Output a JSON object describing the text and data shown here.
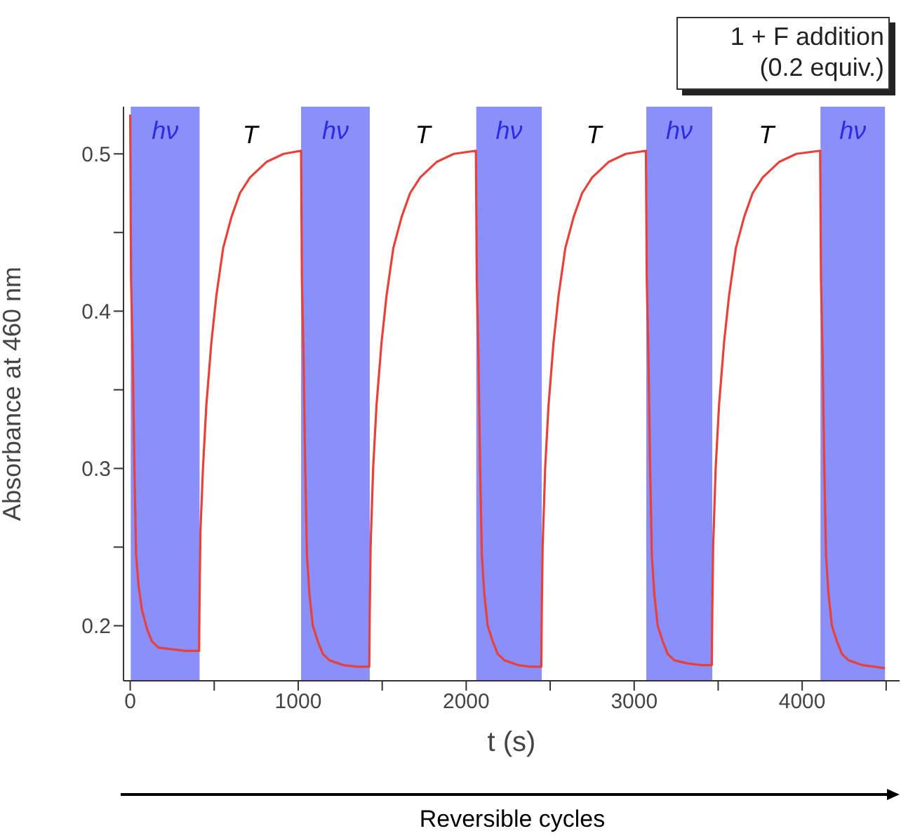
{
  "chart_data": {
    "type": "line",
    "xlabel": "t (s)",
    "ylabel": "Absorbance at 460 nm",
    "xlim": [
      -40,
      4580
    ],
    "ylim": [
      0.165,
      0.53
    ],
    "xticks": [
      0,
      {
        "value": 500,
        "label": null
      },
      1000,
      {
        "value": 1500,
        "label": null
      },
      2000,
      {
        "value": 2500,
        "label": null
      },
      3000,
      {
        "value": 3500,
        "label": null
      },
      4000,
      {
        "value": 4500,
        "label": null
      }
    ],
    "yticks": [
      0.2,
      {
        "value": 0.25,
        "label": null
      },
      0.3,
      {
        "value": 0.35,
        "label": null
      },
      0.4,
      {
        "value": 0.45,
        "label": null
      },
      0.5
    ],
    "grid": false,
    "legend": false,
    "series": [
      {
        "color": "#e8413a",
        "x": [
          0,
          5,
          15,
          25,
          35,
          50,
          70,
          100,
          130,
          170,
          250,
          330,
          410,
          413,
          418,
          433,
          453,
          483,
          513,
          553,
          603,
          653,
          713,
          813,
          913,
          1017,
          1022,
          1032,
          1042,
          1052,
          1067,
          1087,
          1117,
          1147,
          1187,
          1267,
          1350,
          1423,
          1426,
          1431,
          1446,
          1466,
          1496,
          1526,
          1566,
          1616,
          1666,
          1726,
          1826,
          1926,
          2058,
          2063,
          2073,
          2083,
          2093,
          2108,
          2128,
          2158,
          2188,
          2228,
          2308,
          2380,
          2447,
          2450,
          2455,
          2470,
          2490,
          2520,
          2550,
          2590,
          2640,
          2690,
          2750,
          2850,
          2950,
          3070,
          3075,
          3085,
          3095,
          3105,
          3120,
          3140,
          3170,
          3200,
          3240,
          3320,
          3400,
          3462,
          3465,
          3470,
          3485,
          3505,
          3535,
          3565,
          3605,
          3655,
          3705,
          3765,
          3865,
          3965,
          4107,
          4112,
          4122,
          4132,
          4142,
          4157,
          4177,
          4207,
          4237,
          4277,
          4357,
          4430,
          4493
        ],
        "values": [
          0.525,
          0.42,
          0.37,
          0.3,
          0.245,
          0.225,
          0.21,
          0.198,
          0.19,
          0.186,
          0.185,
          0.184,
          0.184,
          0.22,
          0.26,
          0.3,
          0.34,
          0.38,
          0.41,
          0.44,
          0.46,
          0.475,
          0.485,
          0.495,
          0.5,
          0.502,
          0.42,
          0.37,
          0.3,
          0.245,
          0.22,
          0.2,
          0.19,
          0.182,
          0.178,
          0.175,
          0.174,
          0.174,
          0.21,
          0.25,
          0.3,
          0.34,
          0.38,
          0.41,
          0.44,
          0.46,
          0.475,
          0.485,
          0.495,
          0.5,
          0.502,
          0.42,
          0.37,
          0.3,
          0.245,
          0.22,
          0.2,
          0.19,
          0.182,
          0.178,
          0.175,
          0.174,
          0.174,
          0.21,
          0.25,
          0.3,
          0.34,
          0.38,
          0.41,
          0.44,
          0.46,
          0.475,
          0.485,
          0.495,
          0.5,
          0.502,
          0.42,
          0.37,
          0.3,
          0.245,
          0.22,
          0.2,
          0.19,
          0.182,
          0.178,
          0.176,
          0.175,
          0.175,
          0.21,
          0.25,
          0.3,
          0.34,
          0.38,
          0.41,
          0.44,
          0.46,
          0.475,
          0.485,
          0.495,
          0.5,
          0.502,
          0.42,
          0.37,
          0.3,
          0.245,
          0.22,
          0.2,
          0.19,
          0.182,
          0.178,
          0.175,
          0.174,
          0.173
        ]
      }
    ],
    "bands": [
      {
        "axis": "x",
        "from": 3,
        "to": 413,
        "label": "hν",
        "color": "#7b80f8"
      },
      {
        "axis": "x",
        "from": 1017,
        "to": 1426,
        "label": "hν",
        "color": "#7b80f8"
      },
      {
        "axis": "x",
        "from": 2060,
        "to": 2450,
        "label": "hν",
        "color": "#7b80f8"
      },
      {
        "axis": "x",
        "from": 3072,
        "to": 3465,
        "label": "hν",
        "color": "#7b80f8"
      },
      {
        "axis": "x",
        "from": 4109,
        "to": 4493,
        "label": "hν",
        "color": "#7b80f8"
      }
    ],
    "annotations": [
      "T",
      "T",
      "T",
      "T",
      "1 + F addition",
      "(0.2 equiv.)",
      "Reversible cycles"
    ]
  }
}
